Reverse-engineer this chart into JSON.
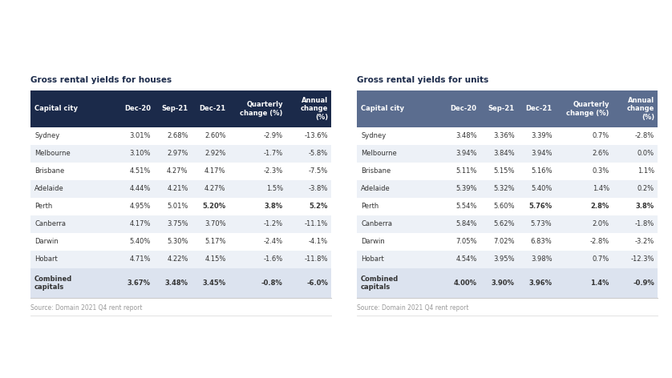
{
  "houses_title": "Gross rental yields for houses",
  "units_title": "Gross rental yields for units",
  "source_text": "Source: Domain 2021 Q4 rent report",
  "col_headers": [
    "Capital city",
    "Dec-20",
    "Sep-21",
    "Dec-21",
    "Quarterly\nchange (%)",
    "Annual\nchange\n(%)"
  ],
  "houses_header_color": "#1b2a4a",
  "units_header_color": "#5b6d8f",
  "row_colors": [
    "#ffffff",
    "#edf1f7"
  ],
  "last_row_color": "#dce3ef",
  "perth_row_idx": 4,
  "perth_bold_cols": [
    3,
    4,
    5
  ],
  "background_color": "#ffffff",
  "source_color": "#999999",
  "title_color": "#1b2a4a",
  "cell_text_color": "#333333",
  "houses_data": [
    [
      "Sydney",
      "3.01%",
      "2.68%",
      "2.60%",
      "-2.9%",
      "-13.6%"
    ],
    [
      "Melbourne",
      "3.10%",
      "2.97%",
      "2.92%",
      "-1.7%",
      "-5.8%"
    ],
    [
      "Brisbane",
      "4.51%",
      "4.27%",
      "4.17%",
      "-2.3%",
      "-7.5%"
    ],
    [
      "Adelaide",
      "4.44%",
      "4.21%",
      "4.27%",
      "1.5%",
      "-3.8%"
    ],
    [
      "Perth",
      "4.95%",
      "5.01%",
      "5.20%",
      "3.8%",
      "5.2%"
    ],
    [
      "Canberra",
      "4.17%",
      "3.75%",
      "3.70%",
      "-1.2%",
      "-11.1%"
    ],
    [
      "Darwin",
      "5.40%",
      "5.30%",
      "5.17%",
      "-2.4%",
      "-4.1%"
    ],
    [
      "Hobart",
      "4.71%",
      "4.22%",
      "4.15%",
      "-1.6%",
      "-11.8%"
    ],
    [
      "Combined\ncapitals",
      "3.67%",
      "3.48%",
      "3.45%",
      "-0.8%",
      "-6.0%"
    ]
  ],
  "units_data": [
    [
      "Sydney",
      "3.48%",
      "3.36%",
      "3.39%",
      "0.7%",
      "-2.8%"
    ],
    [
      "Melbourne",
      "3.94%",
      "3.84%",
      "3.94%",
      "2.6%",
      "0.0%"
    ],
    [
      "Brisbane",
      "5.11%",
      "5.15%",
      "5.16%",
      "0.3%",
      "1.1%"
    ],
    [
      "Adelaide",
      "5.39%",
      "5.32%",
      "5.40%",
      "1.4%",
      "0.2%"
    ],
    [
      "Perth",
      "5.54%",
      "5.60%",
      "5.76%",
      "2.8%",
      "3.8%"
    ],
    [
      "Canberra",
      "5.84%",
      "5.62%",
      "5.73%",
      "2.0%",
      "-1.8%"
    ],
    [
      "Darwin",
      "7.05%",
      "7.02%",
      "6.83%",
      "-2.8%",
      "-3.2%"
    ],
    [
      "Hobart",
      "4.54%",
      "3.95%",
      "3.98%",
      "0.7%",
      "-12.3%"
    ],
    [
      "Combined\ncapitals",
      "4.00%",
      "3.90%",
      "3.96%",
      "1.4%",
      "-0.9%"
    ]
  ],
  "fig_w": 8.38,
  "fig_h": 4.72,
  "dpi": 100
}
